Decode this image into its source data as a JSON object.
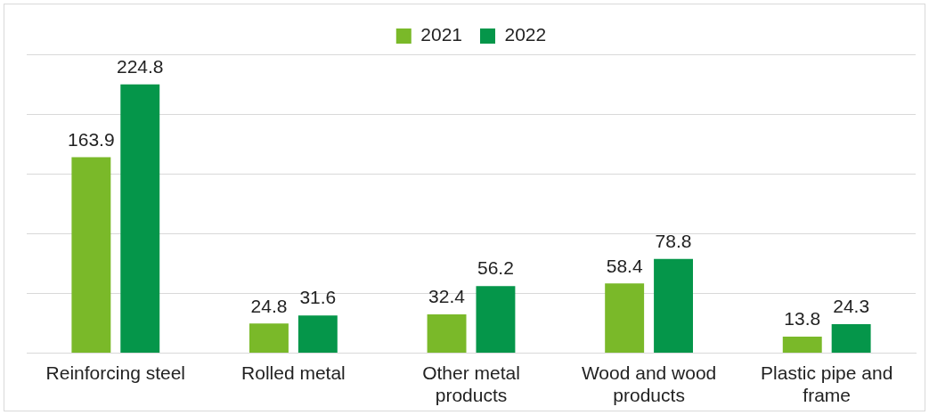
{
  "chart_data": {
    "type": "bar",
    "categories": [
      "Reinforcing steel",
      "Rolled metal",
      "Other metal products",
      "Wood and wood products",
      "Plastic pipe and frame"
    ],
    "series": [
      {
        "name": "2021",
        "color": "#7ab929",
        "values": [
          163.9,
          24.8,
          32.4,
          58.4,
          13.8
        ]
      },
      {
        "name": "2022",
        "color": "#05964a",
        "values": [
          224.8,
          31.6,
          56.2,
          78.8,
          24.3
        ]
      }
    ],
    "ylim": [
      0,
      250
    ],
    "yticks": [
      {
        "value": 0,
        "label": null
      },
      {
        "value": 50,
        "label": null
      },
      {
        "value": 100,
        "label": null
      },
      {
        "value": 150,
        "label": null
      },
      {
        "value": 200,
        "label": null
      },
      {
        "value": 250,
        "label": null
      }
    ],
    "tick_labels": "x",
    "grid": "y",
    "legend": "top",
    "data_labels": true
  }
}
